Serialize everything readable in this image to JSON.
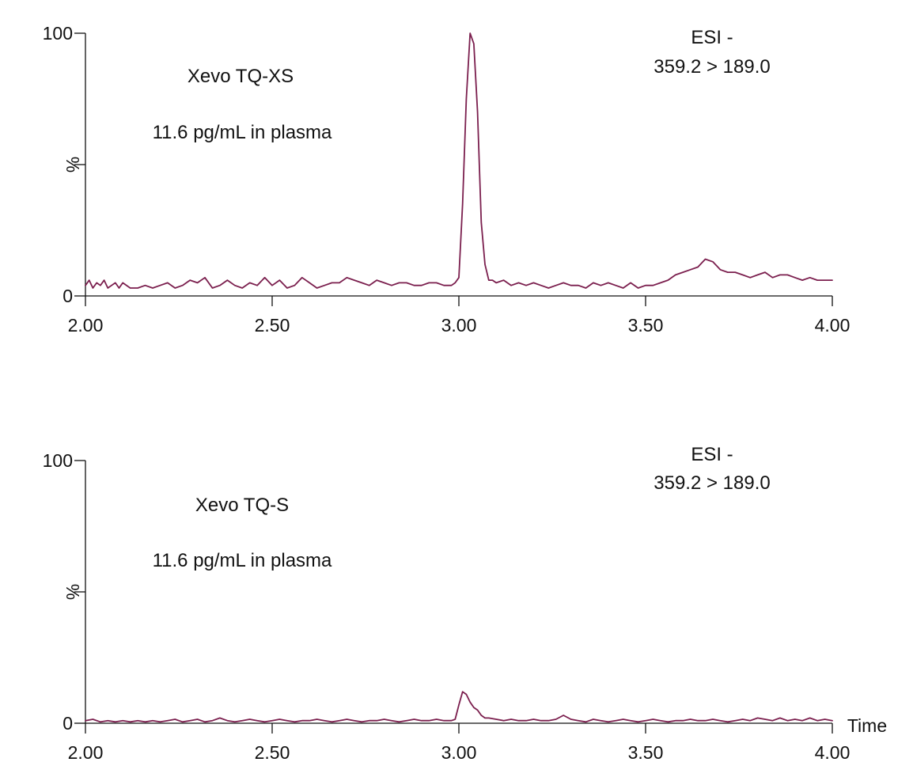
{
  "colors": {
    "trace": "#7b1f4e",
    "axis": "#111111",
    "text": "#111111"
  },
  "chart_data": [
    {
      "type": "line",
      "title": "",
      "xlabel": "",
      "ylabel": "%",
      "xlim": [
        2.0,
        4.0
      ],
      "ylim": [
        0,
        100
      ],
      "x_ticks": [
        "2.00",
        "2.50",
        "3.00",
        "3.50",
        "4.00"
      ],
      "y_ticks": [
        "0",
        "100"
      ],
      "annotations": {
        "instrument": "Xevo TQ-XS",
        "concentration": "11.6 pg/mL in plasma",
        "mode": "ESI -",
        "transition": "359.2 > 189.0"
      },
      "series": [
        {
          "name": "",
          "x": [
            2.0,
            2.01,
            2.02,
            2.03,
            2.04,
            2.05,
            2.06,
            2.07,
            2.08,
            2.09,
            2.1,
            2.12,
            2.14,
            2.16,
            2.18,
            2.2,
            2.22,
            2.24,
            2.26,
            2.28,
            2.3,
            2.32,
            2.34,
            2.36,
            2.38,
            2.4,
            2.42,
            2.44,
            2.46,
            2.48,
            2.5,
            2.52,
            2.54,
            2.56,
            2.58,
            2.6,
            2.62,
            2.64,
            2.66,
            2.68,
            2.7,
            2.72,
            2.74,
            2.76,
            2.78,
            2.8,
            2.82,
            2.84,
            2.86,
            2.88,
            2.9,
            2.92,
            2.94,
            2.96,
            2.98,
            2.99,
            3.0,
            3.01,
            3.02,
            3.03,
            3.04,
            3.05,
            3.06,
            3.07,
            3.08,
            3.09,
            3.1,
            3.12,
            3.14,
            3.16,
            3.18,
            3.2,
            3.22,
            3.24,
            3.26,
            3.28,
            3.3,
            3.32,
            3.34,
            3.36,
            3.38,
            3.4,
            3.42,
            3.44,
            3.46,
            3.48,
            3.5,
            3.52,
            3.54,
            3.56,
            3.58,
            3.6,
            3.62,
            3.64,
            3.66,
            3.68,
            3.7,
            3.72,
            3.74,
            3.76,
            3.78,
            3.8,
            3.82,
            3.84,
            3.86,
            3.88,
            3.9,
            3.92,
            3.94,
            3.96,
            3.98,
            4.0
          ],
          "y": [
            4,
            6,
            3,
            5,
            4,
            6,
            3,
            4,
            5,
            3,
            5,
            3,
            3,
            4,
            3,
            4,
            5,
            3,
            4,
            6,
            5,
            7,
            3,
            4,
            6,
            4,
            3,
            5,
            4,
            7,
            4,
            6,
            3,
            4,
            7,
            5,
            3,
            4,
            5,
            5,
            7,
            6,
            5,
            4,
            6,
            5,
            4,
            5,
            5,
            4,
            4,
            5,
            5,
            4,
            4,
            5,
            7,
            35,
            75,
            100,
            96,
            70,
            28,
            12,
            6,
            6,
            5,
            6,
            4,
            5,
            4,
            5,
            4,
            3,
            4,
            5,
            4,
            4,
            3,
            5,
            4,
            5,
            4,
            3,
            5,
            3,
            4,
            4,
            5,
            6,
            8,
            9,
            10,
            11,
            14,
            13,
            10,
            9,
            9,
            8,
            7,
            8,
            9,
            7,
            8,
            8,
            7,
            6,
            7,
            6,
            6,
            6
          ]
        }
      ]
    },
    {
      "type": "line",
      "title": "",
      "xlabel": "Time",
      "ylabel": "%",
      "xlim": [
        2.0,
        4.0
      ],
      "ylim": [
        0,
        100
      ],
      "x_ticks": [
        "2.00",
        "2.50",
        "3.00",
        "3.50",
        "4.00"
      ],
      "y_ticks": [
        "0",
        "100"
      ],
      "annotations": {
        "instrument": "Xevo TQ-S",
        "concentration": "11.6 pg/mL in plasma",
        "mode": "ESI -",
        "transition": "359.2 > 189.0"
      },
      "series": [
        {
          "name": "",
          "x": [
            2.0,
            2.02,
            2.04,
            2.06,
            2.08,
            2.1,
            2.12,
            2.14,
            2.16,
            2.18,
            2.2,
            2.22,
            2.24,
            2.26,
            2.28,
            2.3,
            2.32,
            2.34,
            2.36,
            2.38,
            2.4,
            2.42,
            2.44,
            2.46,
            2.48,
            2.5,
            2.52,
            2.54,
            2.56,
            2.58,
            2.6,
            2.62,
            2.64,
            2.66,
            2.68,
            2.7,
            2.72,
            2.74,
            2.76,
            2.78,
            2.8,
            2.82,
            2.84,
            2.86,
            2.88,
            2.9,
            2.92,
            2.94,
            2.96,
            2.98,
            2.99,
            3.0,
            3.01,
            3.02,
            3.03,
            3.04,
            3.05,
            3.06,
            3.07,
            3.08,
            3.1,
            3.12,
            3.14,
            3.16,
            3.18,
            3.2,
            3.22,
            3.24,
            3.26,
            3.28,
            3.3,
            3.32,
            3.34,
            3.36,
            3.38,
            3.4,
            3.42,
            3.44,
            3.46,
            3.48,
            3.5,
            3.52,
            3.54,
            3.56,
            3.58,
            3.6,
            3.62,
            3.64,
            3.66,
            3.68,
            3.7,
            3.72,
            3.74,
            3.76,
            3.78,
            3.8,
            3.82,
            3.84,
            3.86,
            3.88,
            3.9,
            3.92,
            3.94,
            3.96,
            3.98,
            4.0
          ],
          "y": [
            1,
            1.5,
            0.5,
            1,
            0.5,
            1,
            0.5,
            1,
            0.5,
            1,
            0.5,
            1,
            1.5,
            0.5,
            1,
            1.5,
            0.5,
            1,
            2,
            1,
            0.5,
            1,
            1.5,
            1,
            0.5,
            1,
            1.5,
            1,
            0.5,
            1,
            1,
            1.5,
            1,
            0.5,
            1,
            1.5,
            1,
            0.5,
            1,
            1,
            1.5,
            1,
            0.5,
            1,
            1.5,
            1,
            1,
            1.5,
            1,
            1,
            1.5,
            7,
            12,
            11,
            8,
            6,
            5,
            3,
            2,
            2,
            1.5,
            1,
            1.5,
            1,
            1,
            1.5,
            1,
            1,
            1.5,
            3,
            1.5,
            1,
            0.5,
            1.5,
            1,
            0.5,
            1,
            1.5,
            1,
            0.5,
            1,
            1.5,
            1,
            0.5,
            1,
            1,
            1.5,
            1,
            1,
            1.5,
            1,
            0.5,
            1,
            1.5,
            1,
            2,
            1.5,
            1,
            2,
            1,
            1.5,
            1,
            2,
            1,
            1.5,
            1
          ]
        }
      ]
    }
  ]
}
